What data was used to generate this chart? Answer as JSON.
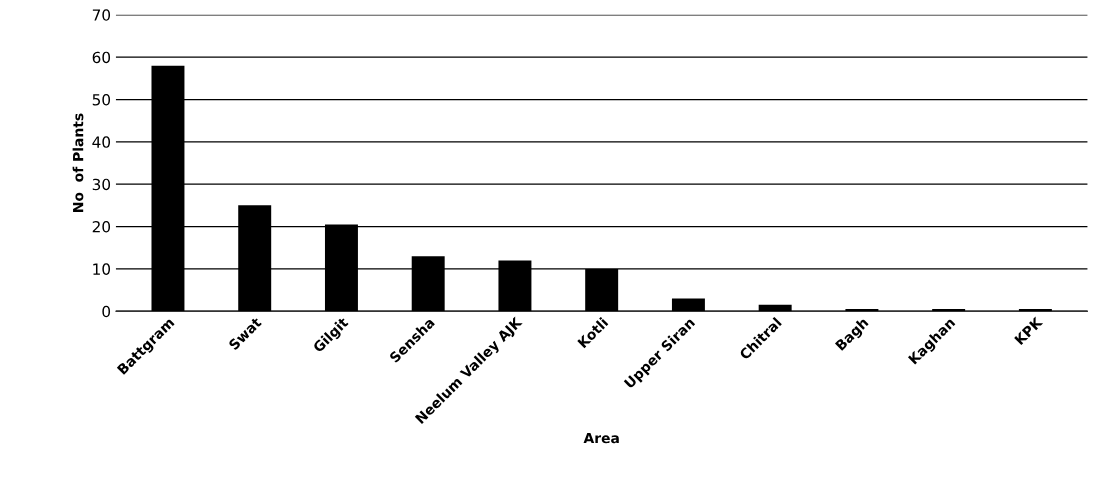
{
  "chart_data": {
    "type": "bar",
    "xlabel": "Area",
    "ylabel": "No  of Plants",
    "categories": [
      "Battgram",
      "Swat",
      "Gilgit",
      "Sensha",
      "Neelum Valley AJK",
      "Kotli",
      "Upper Siran",
      "Chitral",
      "Bagh",
      "Kaghan",
      "KPK"
    ],
    "values": [
      58,
      25,
      20.5,
      13,
      12,
      10,
      3,
      1.5,
      0.5,
      0.5,
      0.5
    ],
    "color": "#000000",
    "ylim": [
      0,
      70
    ],
    "yticks": [
      0,
      10,
      20,
      30,
      40,
      50,
      60,
      70
    ],
    "grid": "y"
  }
}
